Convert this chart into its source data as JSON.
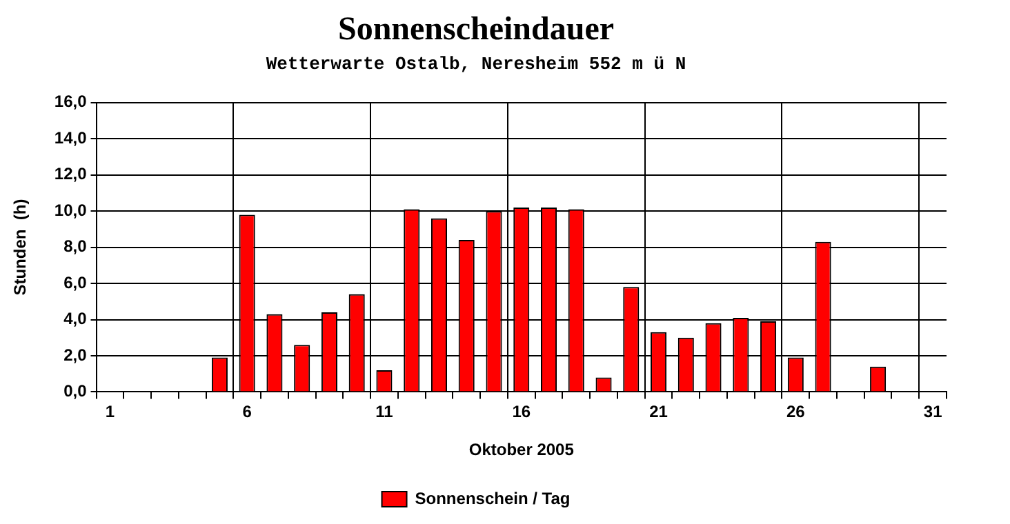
{
  "chart_data": {
    "type": "bar",
    "title": "Sonnenscheindauer",
    "subtitle": "Wetterwarte Ostalb, Neresheim 552 m ü N",
    "xlabel": "Oktober 2005",
    "ylabel": "Stunden  (h)",
    "categories": [
      "1",
      null,
      null,
      null,
      null,
      "6",
      null,
      null,
      null,
      null,
      "11",
      null,
      null,
      null,
      null,
      "16",
      null,
      null,
      null,
      null,
      "21",
      null,
      null,
      null,
      null,
      "26",
      null,
      null,
      null,
      null,
      "31"
    ],
    "series": [
      {
        "name": "Sonnenschein / Tag",
        "color": "#ff0000",
        "values": [
          null,
          null,
          null,
          null,
          1.9,
          9.8,
          4.3,
          2.6,
          4.4,
          5.4,
          1.2,
          10.1,
          9.6,
          8.4,
          10.0,
          10.2,
          10.2,
          10.1,
          0.8,
          5.8,
          3.3,
          3.0,
          3.8,
          4.1,
          3.9,
          1.9,
          8.3,
          null,
          1.4,
          null,
          null
        ]
      }
    ],
    "ylim": [
      0,
      16
    ],
    "yticks": [
      {
        "value": 0,
        "label": "0,0"
      },
      {
        "value": 2,
        "label": "2,0"
      },
      {
        "value": 4,
        "label": "4,0"
      },
      {
        "value": 6,
        "label": "6,0"
      },
      {
        "value": 8,
        "label": "8,0"
      },
      {
        "value": 10,
        "label": "10,0"
      },
      {
        "value": 12,
        "label": "12,0"
      },
      {
        "value": 14,
        "label": "14,0"
      },
      {
        "value": 16,
        "label": "16,0"
      }
    ],
    "grid": true,
    "legend": "bottom"
  }
}
